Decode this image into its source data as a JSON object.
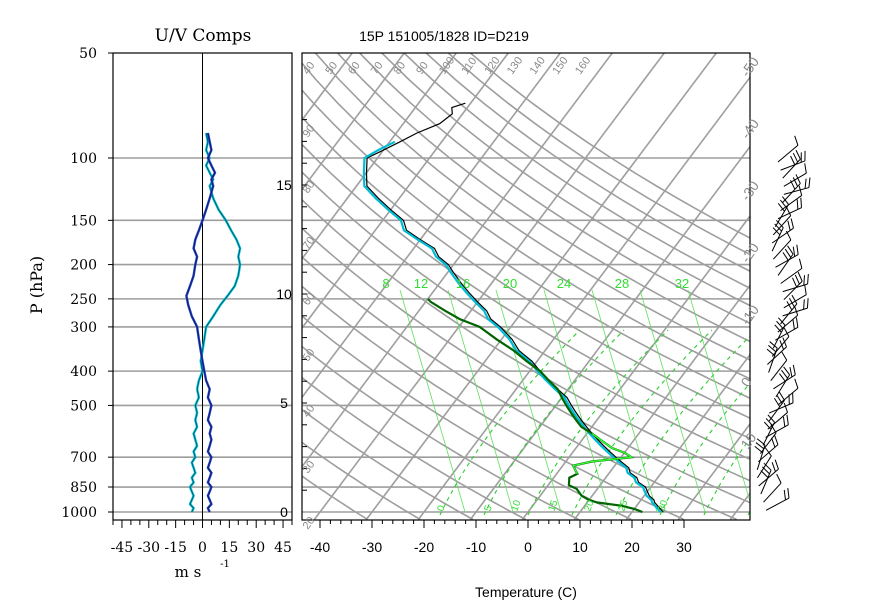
{
  "header": {
    "left_title": "U/V Comps",
    "right_title": "15P 151005/1828 ID=D219"
  },
  "chart_data": [
    {
      "type": "line",
      "title": "U/V Comps",
      "ylabel": "P (hPa)",
      "xlabel": "m s",
      "xlabel_exp": "-1",
      "xticks": [
        -45,
        -30,
        -15,
        0,
        15,
        30,
        45
      ],
      "xlim": [
        -50,
        50
      ],
      "ylim": [
        1000,
        50
      ],
      "pressure_ticks": [
        50,
        100,
        150,
        200,
        250,
        300,
        400,
        500,
        700,
        850,
        1000
      ],
      "y_log_scale": true,
      "grid": "horizontal",
      "series": [
        {
          "color": "#00bcd4",
          "p": [
            1000,
            975,
            950,
            925,
            900,
            875,
            850,
            825,
            800,
            775,
            750,
            725,
            700,
            675,
            650,
            625,
            600,
            575,
            550,
            525,
            500,
            475,
            450,
            425,
            400,
            375,
            350,
            325,
            300,
            280,
            260,
            245,
            230,
            215,
            200,
            190,
            180,
            170,
            160,
            150,
            140,
            130,
            120,
            115,
            110,
            105,
            100,
            95,
            90,
            85
          ],
          "values": [
            -6,
            -5,
            -7,
            -6,
            -5,
            -6,
            -7,
            -5,
            -6,
            -4,
            -5,
            -6,
            -4,
            -5,
            -3,
            -4,
            -5,
            -3,
            -4,
            -3,
            -4,
            -2,
            -3,
            -2,
            0,
            -1,
            0,
            1,
            2,
            6,
            10,
            14,
            18,
            20,
            21,
            20,
            21,
            19,
            16,
            13,
            9,
            6,
            4,
            6,
            4,
            2,
            4,
            2,
            3,
            2
          ]
        },
        {
          "color": "#1f3fc4",
          "p": [
            1000,
            975,
            950,
            925,
            900,
            875,
            850,
            825,
            800,
            775,
            750,
            725,
            700,
            675,
            650,
            625,
            600,
            575,
            550,
            525,
            500,
            475,
            450,
            425,
            400,
            375,
            350,
            325,
            300,
            280,
            260,
            245,
            230,
            215,
            200,
            190,
            180,
            170,
            160,
            150,
            140,
            130,
            120,
            115,
            110,
            105,
            100,
            95,
            90,
            85
          ],
          "values": [
            4,
            3,
            5,
            4,
            3,
            4,
            5,
            3,
            4,
            5,
            3,
            4,
            5,
            3,
            4,
            5,
            4,
            5,
            3,
            4,
            5,
            3,
            4,
            2,
            1,
            0,
            -1,
            -2,
            -3,
            -6,
            -8,
            -9,
            -7,
            -5,
            -4,
            -3,
            -5,
            -4,
            -2,
            0,
            2,
            4,
            6,
            5,
            7,
            5,
            3,
            5,
            4,
            3
          ]
        }
      ]
    },
    {
      "type": "line",
      "title": "15P 151005/1828 ID=D219",
      "xlabel": "Temperature (C)",
      "xticks": [
        -40,
        -30,
        -20,
        -10,
        0,
        10,
        20,
        30
      ],
      "xlim": [
        -44,
        40
      ],
      "ylim": [
        1000,
        50
      ],
      "height_ticks_km": [
        0,
        5,
        10,
        15
      ],
      "height_labels": [
        "0",
        "5",
        "10",
        "15"
      ],
      "isotherm_labels": [
        "-50",
        "-40",
        "-30",
        "-20",
        "-10",
        "0",
        "10",
        "20",
        "30",
        "40",
        "50",
        "60",
        "70",
        "80",
        "90",
        "100",
        "110",
        "120",
        "130",
        "140",
        "150",
        "160"
      ],
      "mixing_ratio_labels": [
        "8",
        "12",
        "16",
        "20",
        "24",
        "28",
        "32"
      ],
      "pressure_grid": [
        100,
        150,
        200,
        250,
        300,
        400,
        500,
        700,
        850,
        1000
      ],
      "skew": true,
      "series": [
        {
          "color": "#000000",
          "p": [
            1000,
            980,
            960,
            940,
            925,
            900,
            875,
            850,
            825,
            800,
            775,
            750,
            725,
            700,
            675,
            650,
            625,
            600,
            575,
            550,
            525,
            500,
            475,
            450,
            425,
            400,
            375,
            350,
            325,
            300,
            285,
            270,
            255,
            240,
            225,
            210,
            200,
            190,
            180,
            170,
            160,
            150,
            140,
            130,
            120,
            110,
            100,
            95,
            90,
            85,
            80,
            75,
            72,
            70
          ],
          "values": [
            26,
            25,
            24,
            23,
            22.5,
            21,
            20,
            19,
            17,
            16,
            14,
            13,
            11,
            9,
            7,
            5,
            3,
            1,
            -1,
            -3,
            -5,
            -7,
            -9,
            -12,
            -15,
            -18,
            -21,
            -25,
            -28,
            -32,
            -35,
            -37,
            -40,
            -43,
            -46,
            -49,
            -51,
            -54,
            -56,
            -60,
            -64,
            -66,
            -70,
            -74,
            -78,
            -80,
            -82,
            -80,
            -78,
            -76,
            -73,
            -72,
            -73,
            -71
          ]
        },
        {
          "color": "#00bcd4",
          "p": [
            1000,
            980,
            960,
            940,
            925,
            900,
            875,
            850,
            825,
            800,
            775,
            750,
            725,
            700,
            675,
            650,
            625,
            600,
            575,
            550,
            525,
            500,
            475,
            450,
            425,
            400,
            375,
            350,
            325,
            300,
            285,
            270,
            255,
            240,
            225,
            210,
            200,
            190,
            180,
            170,
            160,
            150,
            140,
            130,
            120,
            110,
            100,
            95,
            90
          ],
          "values": [
            25.5,
            24.5,
            23.5,
            22.5,
            22,
            20.5,
            19.5,
            18.5,
            16.5,
            15.5,
            13.5,
            12.5,
            10.5,
            8.5,
            6.5,
            4.5,
            2.5,
            0.5,
            -1.5,
            -3.5,
            -5.5,
            -7.5,
            -9.5,
            -12.5,
            -15.5,
            -18.5,
            -21.5,
            -25.5,
            -28.5,
            -32.5,
            -35.5,
            -37.5,
            -40.5,
            -43.5,
            -46.5,
            -49.5,
            -51.5,
            -54.5,
            -56.5,
            -60.5,
            -64.5,
            -66.5,
            -70.5,
            -74.5,
            -78.5,
            -80.5,
            -82.5,
            -81,
            -79
          ]
        },
        {
          "color": "#006400",
          "p": [
            1000,
            980,
            960,
            940,
            925,
            900,
            880,
            860,
            850,
            840,
            820,
            800,
            780,
            760,
            740,
            720,
            700,
            680,
            660,
            640,
            620,
            600,
            575,
            550,
            525,
            500,
            475,
            450,
            425,
            400,
            375,
            350,
            325,
            300,
            285,
            270,
            255,
            250
          ],
          "values": [
            22,
            20,
            17,
            12,
            10,
            8,
            7,
            6,
            5,
            4,
            3.5,
            3,
            4,
            3,
            2,
            5,
            12,
            10,
            7,
            5,
            3,
            1,
            -2,
            -4,
            -6,
            -8,
            -10,
            -12,
            -15,
            -18,
            -22,
            -26,
            -31,
            -36,
            -41,
            -45,
            -49,
            -50
          ]
        }
      ]
    }
  ]
}
